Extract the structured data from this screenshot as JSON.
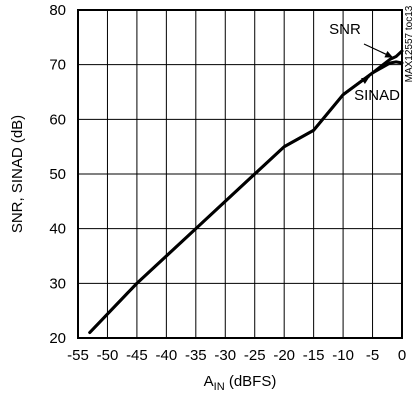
{
  "chart_data": {
    "type": "line",
    "title": "",
    "xlabel_main": "A",
    "xlabel_sub": "IN",
    "xlabel_rest": " (dBFS)",
    "ylabel": "SNR, SINAD (dB)",
    "xlim": [
      -55,
      0
    ],
    "ylim": [
      20,
      80
    ],
    "x_ticks": [
      -55,
      -50,
      -45,
      -40,
      -35,
      -30,
      -25,
      -20,
      -15,
      -10,
      -5,
      0
    ],
    "y_ticks": [
      20,
      30,
      40,
      50,
      60,
      70,
      80
    ],
    "grid": true,
    "watermark": "MAX12557 toc13",
    "series": [
      {
        "name": "SNR",
        "x": [
          -53,
          -45,
          -35,
          -25,
          -20,
          -15,
          -10,
          -5,
          -2,
          -1,
          0
        ],
        "y": [
          21,
          30,
          40,
          50,
          55,
          58,
          64.5,
          68.5,
          71,
          71.5,
          72.5
        ]
      },
      {
        "name": "SINAD",
        "x": [
          -53,
          -45,
          -35,
          -25,
          -20,
          -15,
          -10,
          -5,
          -2,
          -1,
          0
        ],
        "y": [
          21,
          30,
          40,
          50,
          55,
          58,
          64.5,
          68.5,
          70.3,
          70.5,
          70.3
        ]
      }
    ],
    "annotations": [
      {
        "text": "SNR",
        "points_to": {
          "x": -1.5,
          "y": 71.3
        }
      },
      {
        "text": "SINAD",
        "points_to": {
          "x": -5.5,
          "y": 67.8
        }
      }
    ]
  }
}
